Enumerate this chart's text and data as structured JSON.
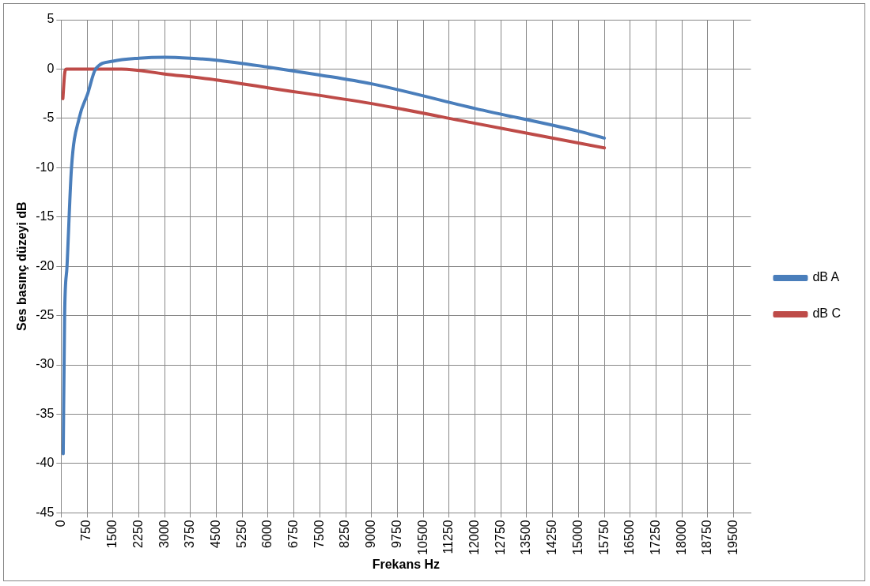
{
  "chart_data": {
    "type": "line",
    "xlabel": "Frekans Hz",
    "ylabel": "Ses basınç düzeyi dB",
    "xlim": [
      0,
      20000
    ],
    "xticks": [
      0,
      750,
      1500,
      2250,
      3000,
      3750,
      4500,
      5250,
      6000,
      6750,
      7500,
      8250,
      9000,
      9750,
      10500,
      11250,
      12000,
      12750,
      13500,
      14250,
      15000,
      15750,
      16500,
      17250,
      18000,
      18750,
      19500
    ],
    "ylim": [
      -45,
      5
    ],
    "yticks": [
      -45,
      -40,
      -35,
      -30,
      -25,
      -20,
      -15,
      -10,
      -5,
      0,
      5
    ],
    "grid": true,
    "legend": "right",
    "marker": "none",
    "line_style": "solid",
    "series": [
      {
        "name": "dB A",
        "color": "#4a7ebb",
        "x": [
          60,
          100,
          170,
          300,
          520,
          770,
          1000,
          1500,
          2250,
          3000,
          3750,
          4500,
          6000,
          7500,
          9000,
          12000,
          15000,
          15750
        ],
        "values": [
          -39,
          -25,
          -20,
          -10,
          -5,
          -2.5,
          0,
          0.8,
          1.1,
          1.2,
          1.1,
          0.9,
          0.2,
          -0.6,
          -1.5,
          -4,
          -6.3,
          -7
        ]
      },
      {
        "name": "dB C",
        "color": "#be4b48",
        "x": [
          50,
          100,
          150,
          1750,
          3000,
          4500,
          6000,
          9000,
          12000,
          15750
        ],
        "values": [
          -3,
          -0.5,
          0,
          0,
          -0.5,
          -1.1,
          -1.9,
          -3.5,
          -5.5,
          -8
        ]
      }
    ]
  }
}
